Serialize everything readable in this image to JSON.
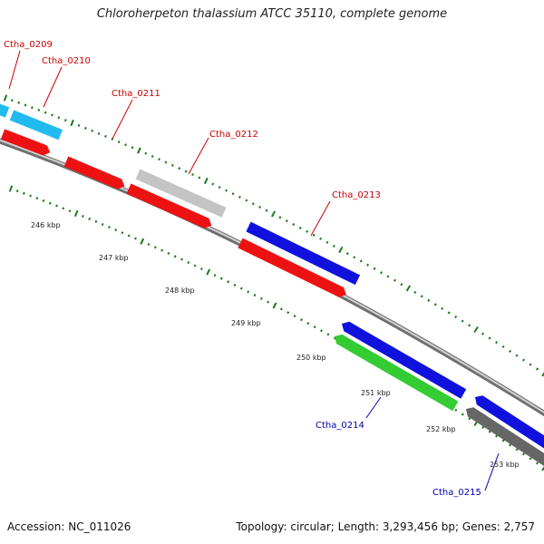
{
  "title": "Chloroherpeton thalassium ATCC 35110, complete genome",
  "footer": {
    "accession": "Accession: NC_011026",
    "summary": "Topology: circular; Length: 3,293,456 bp; Genes: 2,757"
  },
  "colors": {
    "backbone": "#8a8a8a",
    "tick": "#1a7a1a",
    "forward_label": "#cc0000",
    "reverse_label": "#0000aa",
    "cds_forward": "#ee1111",
    "gene_cyan": "#22bbee",
    "gene_gray": "#c4c4c4",
    "gene_blue": "#1111dd",
    "gene_green": "#33cc33",
    "gene_dark": "#666666"
  },
  "kbp_labels": [
    "246 kbp",
    "247 kbp",
    "248 kbp",
    "249 kbp",
    "250 kbp",
    "251 kbp",
    "252 kbp",
    "253 kbp"
  ],
  "gene_labels": [
    {
      "id": "ctha-0209",
      "text": "Ctha_0209",
      "strand": "forward"
    },
    {
      "id": "ctha-0210",
      "text": "Ctha_0210",
      "strand": "forward"
    },
    {
      "id": "ctha-0211",
      "text": "Ctha_0211",
      "strand": "forward"
    },
    {
      "id": "ctha-0212",
      "text": "Ctha_0212",
      "strand": "forward"
    },
    {
      "id": "ctha-0213",
      "text": "Ctha_0213",
      "strand": "forward"
    },
    {
      "id": "ctha-0214",
      "text": "Ctha_0214",
      "strand": "reverse"
    },
    {
      "id": "ctha-0215",
      "text": "Ctha_0215",
      "strand": "reverse"
    }
  ]
}
